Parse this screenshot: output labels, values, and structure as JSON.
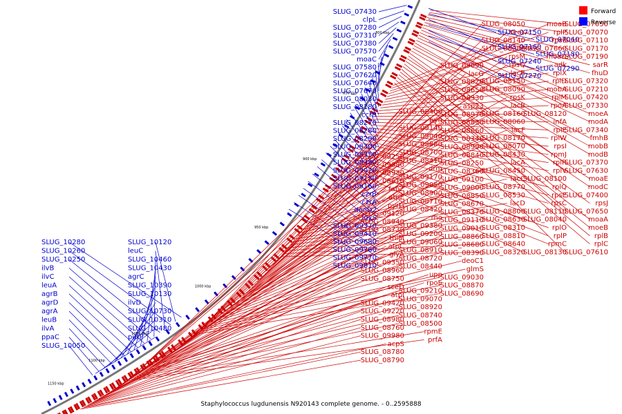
{
  "legend": {
    "items": [
      {
        "label": "Forward",
        "color": "#ff0000"
      },
      {
        "label": "Reverse",
        "color": "#0000ff"
      }
    ]
  },
  "caption": "Staphylococcus lugdunensis N920143 complete genome. - 0..2595888",
  "colors": {
    "forward": "#cc0000",
    "reverse": "#0000cc",
    "backbone": "#777777"
  },
  "ticks": [
    "800 kbp",
    "850 kbp",
    "900 kbp",
    "950 kbp",
    "1000 kbp",
    "1050 kbp",
    "1100 kbp",
    "1150 kbp"
  ],
  "reverse_genes": [
    "SLUG_07430",
    "clpL",
    "SLUG_07280",
    "SLUG_07310",
    "SLUG_07380",
    "SLUG_07570",
    "moaC",
    "SLUG_07580",
    "SLUG_07620",
    "SLUG_07640",
    "SLUG_07670",
    "SLUG_08030",
    "SLUG_08180",
    "ccrB",
    "SLUG_08270",
    "SLUG_08280",
    "SLUG_08290",
    "SLUG_08300",
    "SLUG_08350",
    "SLUG_08380",
    "SLUG_09020",
    "SLUG_09150",
    "SLUG_09160",
    "czrB",
    "czrA",
    "deoD2",
    "luxS",
    "SLUG_09370",
    "SLUG_09410",
    "SLUG_09680",
    "SLUG_09760",
    "SLUG_09770",
    "SLUG_09810",
    "SLUG_10280",
    "SLUG_10260",
    "SLUG_10250",
    "ilvB",
    "ilvC",
    "leuA",
    "agrB",
    "agrD",
    "agrA",
    "leuB",
    "ilvA",
    "ppaC",
    "SLUG_10050",
    "SLUG_10120",
    "leuC",
    "SLUG_10460",
    "SLUG_10430",
    "agrC",
    "SLUG_10390",
    "SLUG_10130",
    "ilvD",
    "SLUG_10730",
    "SLUG_10310",
    "SLUG_10480",
    "putP",
    "SLUG_07150",
    "SLUG_07060",
    "SLUG_07160",
    "SLUG_07180",
    "SLUG_07240",
    "SLUG_07290",
    "SLUG_07270"
  ],
  "forward_genes": [
    "SLUG_07050",
    "SLUG_07070",
    "SLUG_07110",
    "SLUG_07170",
    "SLUG_07190",
    "sarR",
    "fhuD",
    "SLUG_07320",
    "SLUG_07210",
    "SLUG_07420",
    "SLUG_07330",
    "moeA",
    "modA",
    "SLUG_07340",
    "fmhB",
    "mobB",
    "modB",
    "SLUG_07370",
    "SLUG_07630",
    "moaE",
    "modC",
    "SLUG_07400",
    "rpsJ",
    "SLUG_07650",
    "moaA",
    "moeB",
    "rplB",
    "rplC",
    "SLUG_07610",
    "moaB",
    "rplP",
    "rpsS",
    "SLUG_07660",
    "moaD",
    "adk",
    "rplX",
    "rplD",
    "mobA",
    "rplM",
    "rpoA",
    "SLUG_08120",
    "infA",
    "rplE",
    "rplW",
    "rpsI",
    "rpmJ",
    "rplR",
    "rplV",
    "SLUG_08100",
    "rplQ",
    "rpsE",
    "rpsC",
    "SLUG_08110",
    "SLUG_08040",
    "rplO",
    "rplP",
    "rpmC",
    "SLUG_08130",
    "SLUG_08050",
    "secY",
    "SLUG_08140",
    "SLUG_08080",
    "rpsM",
    "rpsQ",
    "lacR",
    "SLUG_08150",
    "SLUG_08090",
    "rpsK",
    "lacB",
    "SLUG_08160",
    "SLUG_08060",
    "lacF",
    "SLUG_08170",
    "SLUG_08070",
    "SLUG_08430",
    "lacA",
    "SLUG_08450",
    "lacC",
    "SLUG_08770",
    "SLUG_08530",
    "lacD",
    "SLUG_08800",
    "SLUG_08630",
    "SLUG_08310",
    "SLUG_08810",
    "SLUG_08640",
    "SLUG_08320",
    "SLUG_09090",
    "lacG",
    "SLUG_08820",
    "SLUG_08650",
    "SLUG_08330",
    "asp23",
    "SLUG_08970",
    "SLUG_08830",
    "SLUG_08660",
    "SLUG_08340",
    "SLUG_08990",
    "SLUG_08840",
    "SLUG_08250",
    "SLUG_08360",
    "SLUG_09100",
    "SLUG_09000",
    "SLUG_08850",
    "SLUG_08670",
    "SLUG_08370",
    "SLUG_09110",
    "SLUG_09010",
    "SLUG_08860",
    "SLUG_08680",
    "SLUG_08390",
    "deoC1",
    "glmS",
    "SLUG_09030",
    "SLUG_08870",
    "SLUG_08690",
    "SLUG_08400",
    "pyn",
    "SLUG_09140",
    "SLUG_09040",
    "SLUG_08880",
    "SLUG_08700",
    "SLUG_08410",
    "drm",
    "SLUG_09170",
    "SLUG_09050",
    "SLUG_08900",
    "SLUG_08710",
    "SLUG_08420",
    "rho",
    "SLUG_09380",
    "SLUG_09200",
    "SLUG_09060",
    "SLUG_08910",
    "SLUG_08720",
    "SLUG_08440",
    "upp",
    "rpoE",
    "SLUG_09210",
    "SLUG_09070",
    "SLUG_08920",
    "SLUG_08740",
    "SLUG_08500",
    "rpmE",
    "prfA",
    "SLUG_09250",
    "SLUG_09080",
    "SLUG_08930",
    "SLUG_08610",
    "fabZ",
    "atpE",
    "pyrG",
    "SLUG_09120",
    "SLUG_08940",
    "SLUG_08730",
    "thiM",
    "atpC",
    "glyA",
    "SLUG_09350",
    "SLUG_08960",
    "SLUG_08750",
    "sceD",
    "atpI",
    "SLUG_09420",
    "SLUG_09220",
    "SLUG_08980",
    "SLUG_08760",
    "SLUG_09980",
    "acpS",
    "SLUG_08780",
    "SLUG_08790"
  ]
}
